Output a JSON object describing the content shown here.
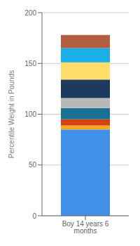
{
  "chart_data": {
    "type": "bar",
    "stacked": true,
    "ylabel": "Percentile Weight in Pounds",
    "categories": [
      "Boy 14 years 6 months"
    ],
    "series": [
      {
        "color": "#4090E8",
        "values": [
          85
        ]
      },
      {
        "color": "#F5A820",
        "values": [
          4
        ]
      },
      {
        "color": "#D94010",
        "values": [
          6
        ]
      },
      {
        "color": "#1A7090",
        "values": [
          11
        ]
      },
      {
        "color": "#B8B8B8",
        "values": [
          10
        ]
      },
      {
        "color": "#1E3A5F",
        "values": [
          18
        ]
      },
      {
        "color": "#FEDD6A",
        "values": [
          17
        ]
      },
      {
        "color": "#1AAFE8",
        "values": [
          14
        ]
      },
      {
        "color": "#B06040",
        "values": [
          13
        ]
      }
    ],
    "ylim": [
      0,
      200
    ],
    "yticks": [
      0,
      50,
      100,
      150,
      200
    ],
    "grid": true
  }
}
